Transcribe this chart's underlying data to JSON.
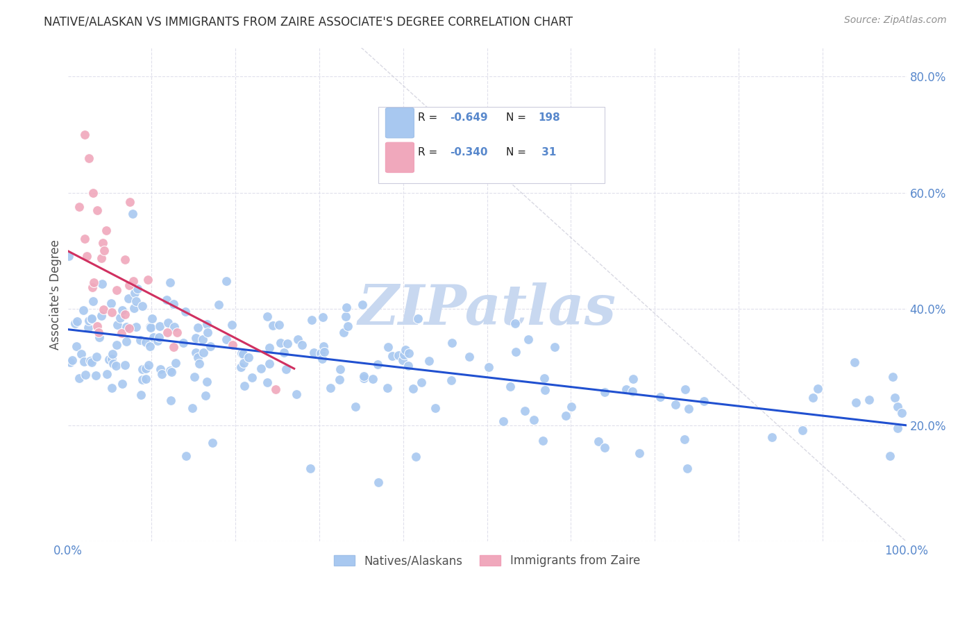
{
  "title": "NATIVE/ALASKAN VS IMMIGRANTS FROM ZAIRE ASSOCIATE'S DEGREE CORRELATION CHART",
  "source": "Source: ZipAtlas.com",
  "ylabel": "Associate's Degree",
  "blue_R": -0.649,
  "blue_N": 198,
  "pink_R": -0.34,
  "pink_N": 31,
  "blue_color": "#A8C8F0",
  "pink_color": "#F0A8BC",
  "blue_line_color": "#2050D0",
  "pink_line_color": "#D03060",
  "diagonal_line_color": "#D0D0DC",
  "background_color": "#FFFFFF",
  "grid_color": "#E0E0EC",
  "title_color": "#303030",
  "source_color": "#909090",
  "axis_label_color": "#5888CC",
  "watermark_color": "#C8D8F0",
  "blue_intercept": 0.365,
  "blue_slope": -0.165,
  "pink_intercept": 0.5,
  "pink_slope": -0.75
}
